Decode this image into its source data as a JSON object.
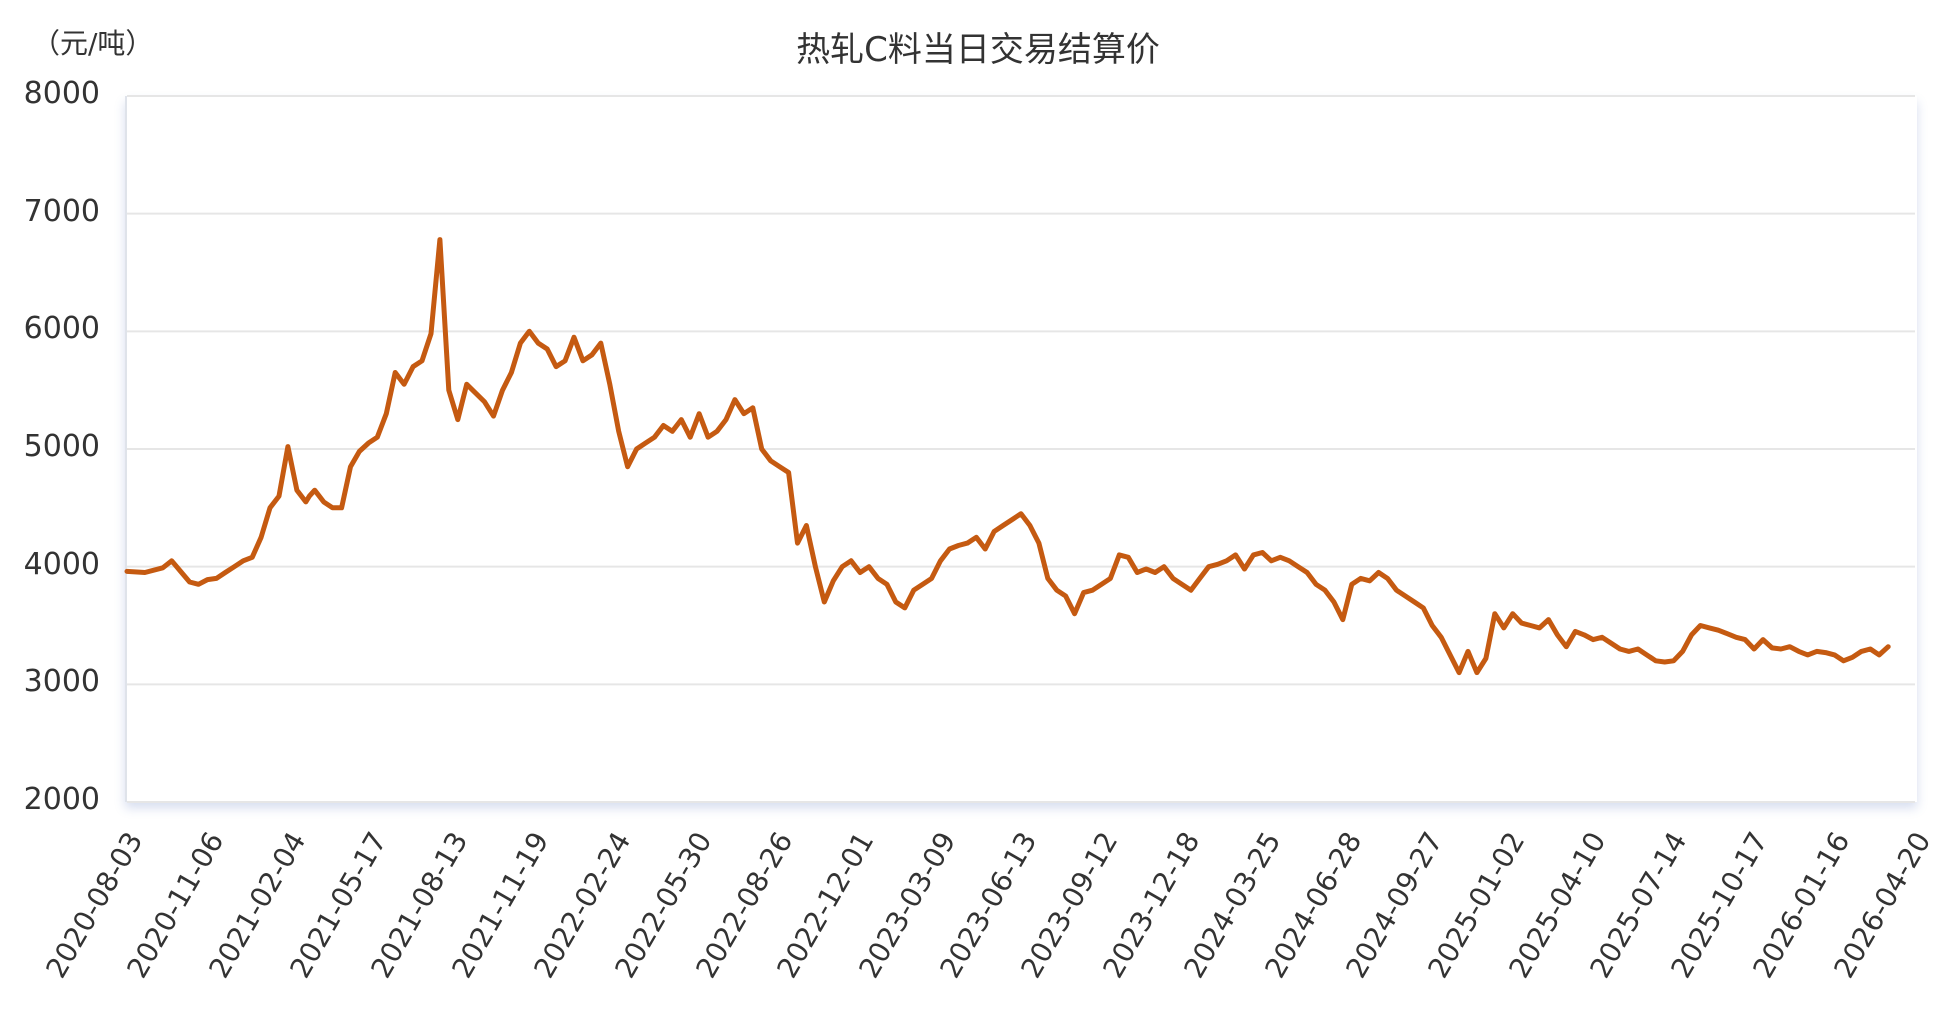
{
  "title": "热轧C料当日交易结算价",
  "unit_label": "（元/吨）",
  "line_color": "#c55a11",
  "chart_data": {
    "type": "line",
    "title": "热轧C料当日交易结算价",
    "xlabel": "",
    "ylabel": "（元/吨）",
    "ylim": [
      2000,
      8000
    ],
    "yticks": [
      2000,
      3000,
      4000,
      5000,
      6000,
      7000,
      8000
    ],
    "grid": true,
    "legend": null,
    "x_tick_labels": [
      "2020-08-03",
      "2020-11-06",
      "2021-02-04",
      "2021-05-17",
      "2021-08-13",
      "2021-11-19",
      "2022-02-24",
      "2022-05-30",
      "2022-08-26",
      "2022-12-01",
      "2023-03-09",
      "2023-06-13",
      "2023-09-12",
      "2023-12-18",
      "2024-03-25",
      "2024-06-28",
      "2024-09-27",
      "2025-01-02",
      "2025-04-10",
      "2025-07-14",
      "2025-10-17",
      "2026-01-16",
      "2026-04-20"
    ],
    "series": [
      {
        "name": "热轧C料当日交易结算价",
        "x_pos": [
          0,
          0.01,
          0.02,
          0.025,
          0.03,
          0.035,
          0.04,
          0.045,
          0.05,
          0.055,
          0.06,
          0.065,
          0.07,
          0.075,
          0.08,
          0.085,
          0.09,
          0.095,
          0.1,
          0.102,
          0.105,
          0.11,
          0.115,
          0.12,
          0.125,
          0.13,
          0.135,
          0.14,
          0.145,
          0.15,
          0.155,
          0.16,
          0.165,
          0.17,
          0.175,
          0.18,
          0.185,
          0.19,
          0.2,
          0.205,
          0.21,
          0.215,
          0.22,
          0.225,
          0.23,
          0.235,
          0.24,
          0.245,
          0.25,
          0.255,
          0.26,
          0.265,
          0.27,
          0.275,
          0.28,
          0.285,
          0.29,
          0.295,
          0.3,
          0.305,
          0.31,
          0.315,
          0.32,
          0.325,
          0.33,
          0.335,
          0.34,
          0.345,
          0.35,
          0.355,
          0.36,
          0.365,
          0.37,
          0.375,
          0.38,
          0.385,
          0.39,
          0.395,
          0.4,
          0.405,
          0.41,
          0.415,
          0.42,
          0.425,
          0.43,
          0.435,
          0.44,
          0.445,
          0.45,
          0.455,
          0.46,
          0.465,
          0.47,
          0.475,
          0.48,
          0.485,
          0.49,
          0.495,
          0.5,
          0.505,
          0.51,
          0.515,
          0.52,
          0.525,
          0.53,
          0.535,
          0.54,
          0.545,
          0.55,
          0.555,
          0.56,
          0.565,
          0.57,
          0.575,
          0.58,
          0.585,
          0.59,
          0.595,
          0.6,
          0.605,
          0.61,
          0.615,
          0.62,
          0.625,
          0.63,
          0.635,
          0.64,
          0.645,
          0.65,
          0.655,
          0.66,
          0.665,
          0.67,
          0.675,
          0.68,
          0.685,
          0.69,
          0.695,
          0.7,
          0.705,
          0.71,
          0.715,
          0.72,
          0.725,
          0.73,
          0.735,
          0.74,
          0.745,
          0.75,
          0.755,
          0.76,
          0.765,
          0.77,
          0.775,
          0.78,
          0.785,
          0.79,
          0.795,
          0.8,
          0.805,
          0.81,
          0.815,
          0.82,
          0.825,
          0.83,
          0.835,
          0.84,
          0.845,
          0.85,
          0.855,
          0.86,
          0.865,
          0.87,
          0.875,
          0.88,
          0.885,
          0.89,
          0.895,
          0.9,
          0.905,
          0.91,
          0.915,
          0.92,
          0.925,
          0.93,
          0.935,
          0.94,
          0.945,
          0.95,
          0.955,
          0.96,
          0.965,
          0.97,
          0.975,
          0.98,
          0.985,
          0.99,
          0.995,
          1.0
        ],
        "values": [
          3960,
          3950,
          3990,
          4050,
          3960,
          3870,
          3850,
          3890,
          3900,
          3950,
          4000,
          4050,
          4080,
          4250,
          4500,
          4600,
          5020,
          4650,
          4550,
          4600,
          4650,
          4550,
          4500,
          4500,
          4850,
          4980,
          5050,
          5100,
          5300,
          5650,
          5550,
          5700,
          5750,
          5980,
          6780,
          5500,
          5250,
          5550,
          5400,
          5280,
          5500,
          5650,
          5900,
          6000,
          5900,
          5850,
          5700,
          5750,
          5950,
          5750,
          5800,
          5900,
          5550,
          5150,
          4850,
          5000,
          5050,
          5100,
          5200,
          5150,
          5250,
          5100,
          5300,
          5100,
          5150,
          5250,
          5420,
          5300,
          5350,
          5000,
          4900,
          4850,
          4800,
          4200,
          4350,
          4000,
          3700,
          3880,
          4000,
          4050,
          3950,
          4000,
          3900,
          3850,
          3700,
          3650,
          3800,
          3850,
          3900,
          4050,
          4150,
          4180,
          4200,
          4250,
          4150,
          4300,
          4350,
          4400,
          4450,
          4350,
          4200,
          3900,
          3800,
          3750,
          3600,
          3780,
          3800,
          3850,
          3900,
          4100,
          4080,
          3950,
          3980,
          3950,
          4000,
          3900,
          3850,
          3800,
          3900,
          4000,
          4020,
          4050,
          4100,
          3980,
          4100,
          4120,
          4050,
          4080,
          4050,
          4000,
          3950,
          3850,
          3800,
          3700,
          3550,
          3850,
          3900,
          3880,
          3950,
          3900,
          3800,
          3750,
          3700,
          3650,
          3500,
          3400,
          3250,
          3100,
          3280,
          3100,
          3220,
          3600,
          3480,
          3600,
          3520,
          3500,
          3480,
          3550,
          3420,
          3320,
          3450,
          3420,
          3380,
          3400,
          3350,
          3300,
          3280,
          3300,
          3250,
          3200,
          3190,
          3200,
          3280,
          3420,
          3500,
          3480,
          3460,
          3430,
          3400,
          3380,
          3300,
          3380,
          3310,
          3300,
          3320,
          3280,
          3250,
          3280,
          3270,
          3250,
          3200,
          3230,
          3280,
          3300,
          3250,
          3320
        ]
      }
    ]
  },
  "yaxis": {
    "labels": [
      "8000",
      "7000",
      "6000",
      "5000",
      "4000",
      "3000",
      "2000"
    ]
  }
}
